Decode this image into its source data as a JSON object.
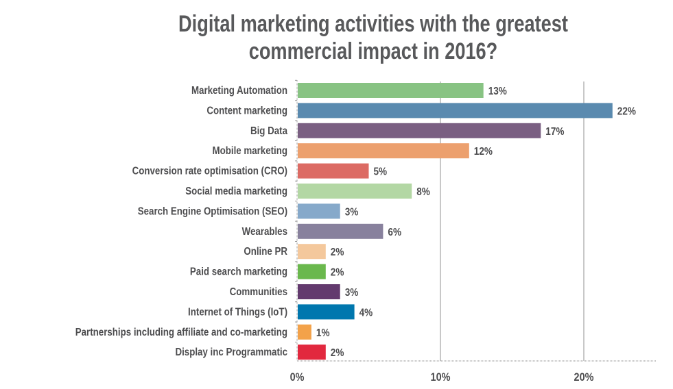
{
  "chart_data": {
    "type": "bar",
    "orientation": "horizontal",
    "title": "Digital marketing activities with the greatest commercial impact in 2016?",
    "title_lines": [
      "Digital marketing activities with the greatest",
      "commercial impact in 2016?"
    ],
    "categories": [
      "Marketing Automation",
      "Content marketing",
      "Big Data",
      "Mobile marketing",
      "Conversion rate optimisation (CRO)",
      "Social media marketing",
      "Search Engine Optimisation (SEO)",
      "Wearables",
      "Online PR",
      "Paid search marketing",
      "Communities",
      "Internet of Things (IoT)",
      "Partnerships including affiliate and co-marketing",
      "Display inc Programmatic"
    ],
    "values": [
      13,
      22,
      17,
      12,
      5,
      8,
      3,
      6,
      2,
      2,
      3,
      4,
      1,
      2
    ],
    "data_labels": [
      "13%",
      "22%",
      "17%",
      "12%",
      "5%",
      "8%",
      "3%",
      "6%",
      "2%",
      "2%",
      "3%",
      "4%",
      "1%",
      "2%"
    ],
    "colors": [
      "#88c383",
      "#5a8aaf",
      "#7a5f82",
      "#eca06e",
      "#dc6b64",
      "#b3d7a4",
      "#86a9ca",
      "#88819d",
      "#f4c89c",
      "#6ab84d",
      "#633a6e",
      "#0077ae",
      "#f3a24a",
      "#e2283e"
    ],
    "xlim": [
      0,
      25
    ],
    "xticks": [
      0,
      10,
      20
    ],
    "xtick_labels": [
      "0%",
      "10%",
      "20%"
    ],
    "xlabel": "",
    "ylabel": "",
    "grid": "vertical",
    "legend": "none"
  }
}
